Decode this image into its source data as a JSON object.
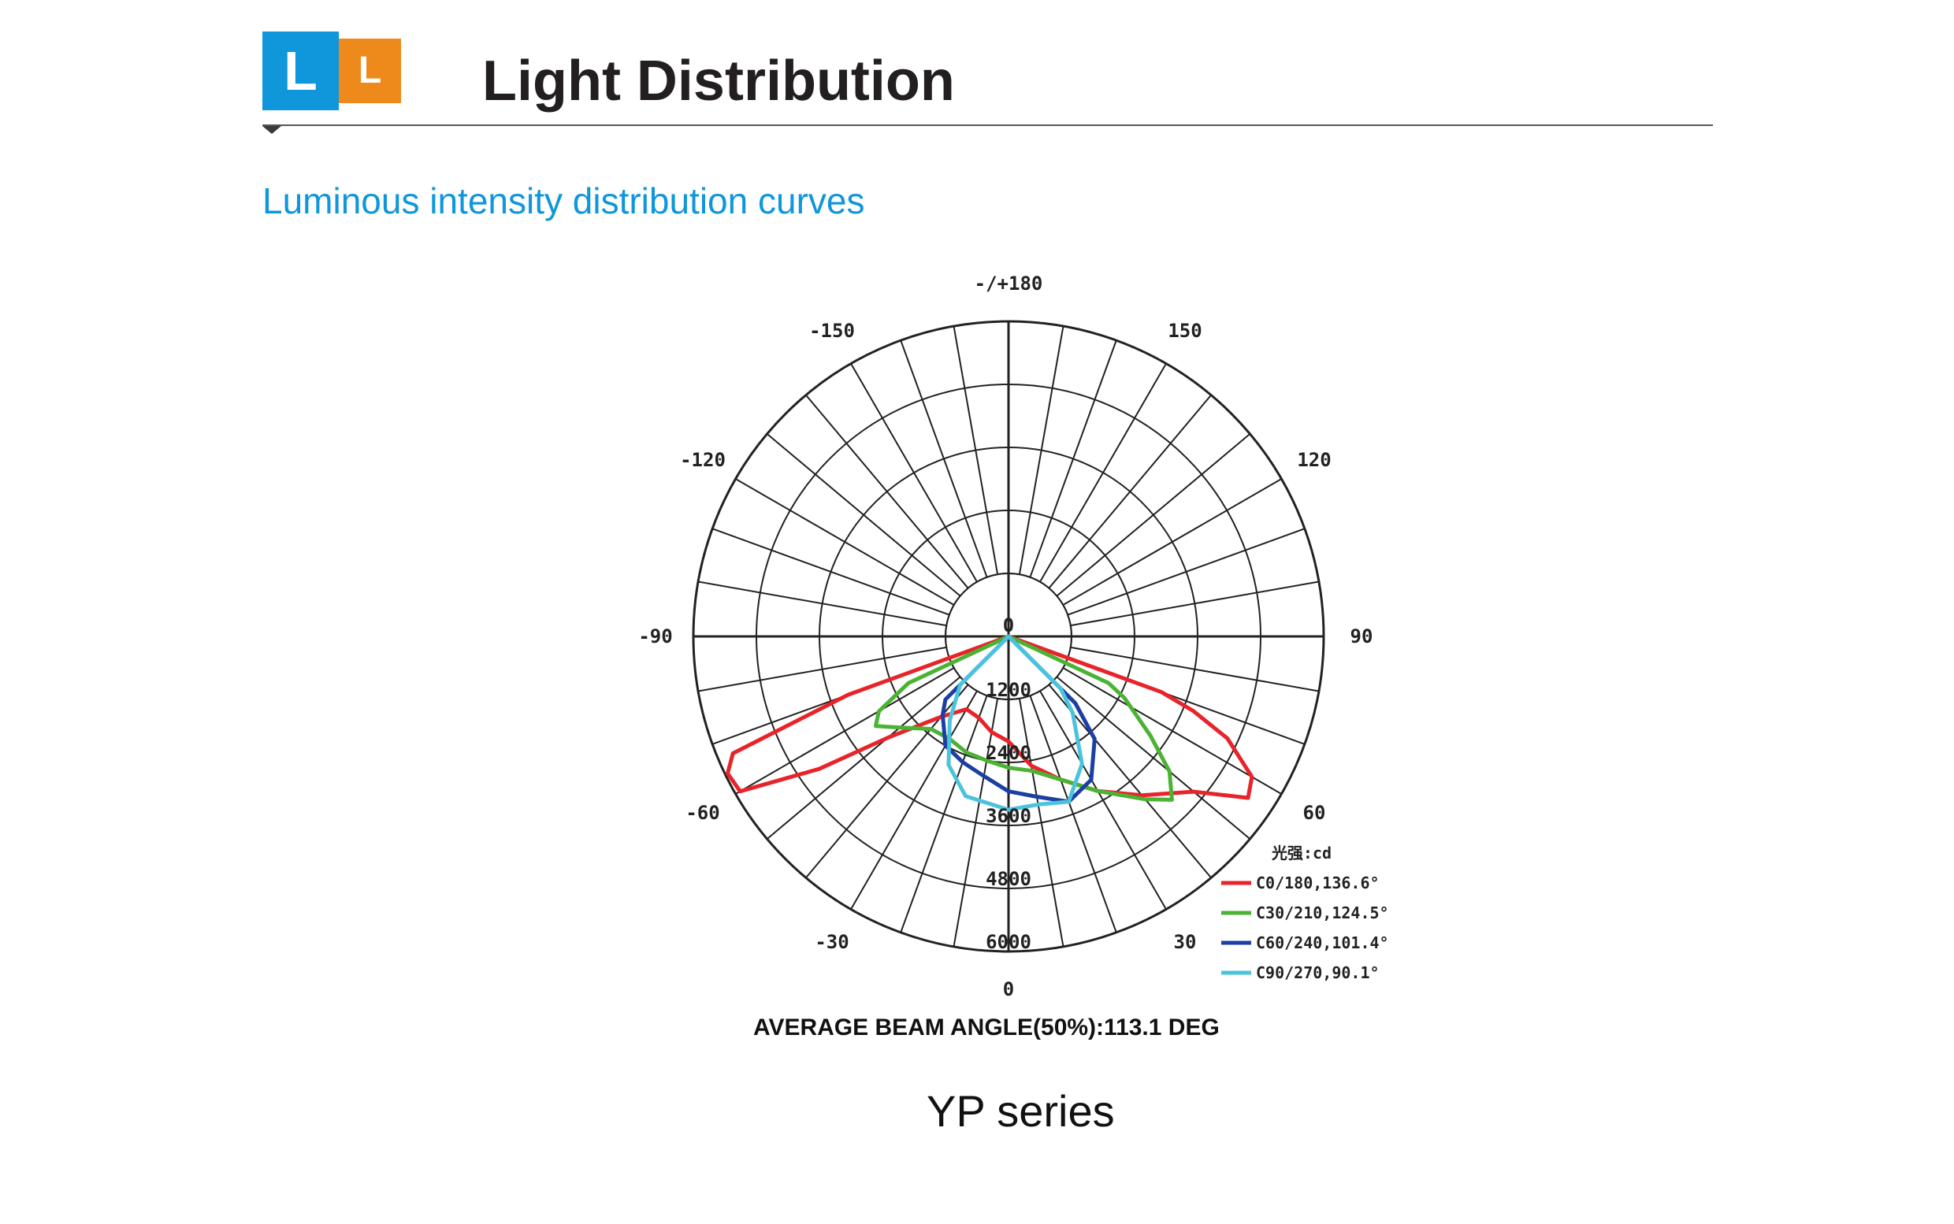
{
  "header": {
    "logo_left_letter": "L",
    "logo_right_letter": "L",
    "title": "Light Distribution",
    "colors": {
      "blue": "#0f96db",
      "orange": "#ee8a1c"
    }
  },
  "section_title": "Luminous intensity distribution curves",
  "chart_data": {
    "type": "polar",
    "angle_labels": [
      {
        "angle": 180,
        "text": "-/+180"
      },
      {
        "angle": -150,
        "text": "-150"
      },
      {
        "angle": 150,
        "text": "150"
      },
      {
        "angle": -120,
        "text": "-120"
      },
      {
        "angle": 120,
        "text": "120"
      },
      {
        "angle": -90,
        "text": "-90"
      },
      {
        "angle": 90,
        "text": "90"
      },
      {
        "angle": -60,
        "text": "-60"
      },
      {
        "angle": 60,
        "text": "60"
      },
      {
        "angle": -30,
        "text": "-30"
      },
      {
        "angle": 30,
        "text": "30"
      },
      {
        "angle": 0,
        "text": "0"
      }
    ],
    "center_label": "0",
    "ring_ticks": [
      1200,
      2400,
      3600,
      4800,
      6000
    ],
    "ring_labels": [
      "1200",
      "2400",
      "3600",
      "4800",
      "6000"
    ],
    "rmax": 6000,
    "angle_step_deg": 10,
    "legend_title": "光强:cd",
    "series": [
      {
        "name": "C0/180,136.6°",
        "color": "#e8232a",
        "points": [
          [
            -70,
            3250
          ],
          [
            -67,
            5700
          ],
          [
            -64,
            5950
          ],
          [
            -60,
            5900
          ],
          [
            -55,
            4400
          ],
          [
            -50,
            3000
          ],
          [
            -40,
            2000
          ],
          [
            -30,
            1600
          ],
          [
            -20,
            1650
          ],
          [
            -10,
            1850
          ],
          [
            0,
            2000
          ],
          [
            10,
            2500
          ],
          [
            20,
            2900
          ],
          [
            30,
            3400
          ],
          [
            40,
            3950
          ],
          [
            50,
            4600
          ],
          [
            56,
            5500
          ],
          [
            60,
            5350
          ],
          [
            65,
            4600
          ],
          [
            68,
            3800
          ],
          [
            70,
            3100
          ]
        ]
      },
      {
        "name": "C30/210,124.5°",
        "color": "#4cb234",
        "points": [
          [
            -65,
            2100
          ],
          [
            -60,
            2850
          ],
          [
            -56,
            3050
          ],
          [
            -50,
            2700
          ],
          [
            -40,
            2300
          ],
          [
            -30,
            2250
          ],
          [
            -20,
            2350
          ],
          [
            -10,
            2400
          ],
          [
            0,
            2500
          ],
          [
            10,
            2600
          ],
          [
            20,
            2900
          ],
          [
            30,
            3400
          ],
          [
            40,
            4050
          ],
          [
            45,
            4400
          ],
          [
            50,
            4000
          ],
          [
            55,
            3300
          ],
          [
            62,
            2500
          ],
          [
            65,
            2100
          ]
        ]
      },
      {
        "name": "C60/240,101.4°",
        "color": "#1b3fa2",
        "points": [
          [
            -45,
            1700
          ],
          [
            -40,
            1950
          ],
          [
            -30,
            2400
          ],
          [
            -20,
            2550
          ],
          [
            -10,
            2700
          ],
          [
            0,
            2950
          ],
          [
            10,
            3100
          ],
          [
            20,
            3350
          ],
          [
            30,
            3150
          ],
          [
            40,
            2550
          ],
          [
            45,
            1800
          ]
        ]
      },
      {
        "name": "C90/270,90.1°",
        "color": "#4bc3dd",
        "points": [
          [
            -45,
            1300
          ],
          [
            -35,
            1950
          ],
          [
            -25,
            2700
          ],
          [
            -15,
            3150
          ],
          [
            0,
            3300
          ],
          [
            10,
            3250
          ],
          [
            20,
            3350
          ],
          [
            30,
            2800
          ],
          [
            40,
            1900
          ],
          [
            45,
            1400
          ]
        ]
      }
    ]
  },
  "beam_angle_text": "AVERAGE BEAM ANGLE(50%):113.1 DEG",
  "series_caption": "YP series"
}
